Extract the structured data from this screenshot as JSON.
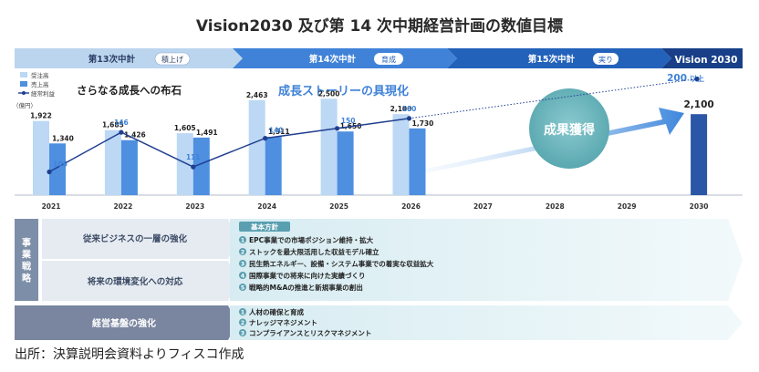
{
  "title": "Vision2030 及び第 14 次中期経営計画の数値目標",
  "source": "出所：決算説明会資料よりフィスコ作成",
  "colors": {
    "orders": "#bcd8f4",
    "sales": "#4e8fe0",
    "profit": "#1f3f8f",
    "sales2030": "#2a56a6",
    "plan13": "#bcd5ee",
    "plan14": "#3f82d8",
    "plan15": "#2362ba",
    "vision": "#183f88",
    "strategy": "#7d8ea8",
    "base": "#7a86a0"
  },
  "phases": [
    {
      "name": "第13次中計",
      "badge": "積上げ"
    },
    {
      "name": "第14次中計",
      "badge": "育成"
    },
    {
      "name": "第15次中計",
      "badge": "実り"
    },
    {
      "name": "Vision 2030",
      "badge": ""
    }
  ],
  "headline_left": "さらなる成長への布石",
  "headline_mid": "成長ストーリーの具現化",
  "arrow_label": "成果獲得",
  "target_profit_label": "200",
  "target_profit_suffix": "以上",
  "unit_label": "（億円）",
  "chart_data": {
    "type": "bar",
    "categories": [
      "2021",
      "2022",
      "2023",
      "2024",
      "2025",
      "2026",
      "2027",
      "2028",
      "2029",
      "2030"
    ],
    "series": [
      {
        "name": "受注高",
        "values": [
          1922,
          1685,
          1605,
          2463,
          2500,
          2100,
          null,
          null,
          null,
          null
        ]
      },
      {
        "name": "売上高",
        "values": [
          1340,
          1426,
          1491,
          1511,
          1650,
          1730,
          null,
          null,
          null,
          2100
        ]
      },
      {
        "name": "経常利益",
        "type": "line",
        "values": [
          106,
          146,
          111,
          140,
          150,
          160,
          null,
          null,
          null,
          200
        ]
      }
    ],
    "legend_position": "top-left",
    "grid": false
  },
  "strategy": {
    "side_label": "事業戦略",
    "rows": [
      "従来ビジネスの一層の強化",
      "将来の環境変化への対応"
    ],
    "policy_title": "基本方針",
    "items": [
      {
        "num": "1",
        "text": "EPC事業での市場ポジション維持・拡大"
      },
      {
        "num": "2",
        "text": "ストックを最大限活用した収益モデル確立"
      },
      {
        "num": "3",
        "text": "民生熱エネルギー、設備・システム事業での着実な収益拡大"
      },
      {
        "num": "4",
        "text": "国際事業での将来に向けた実績づくり"
      },
      {
        "num": "5",
        "text": "戦略的M&Aの推進と新規事業の創出"
      }
    ]
  },
  "base": {
    "label": "経営基盤の強化",
    "items": [
      {
        "num": "1",
        "text": "人材の確保と育成"
      },
      {
        "num": "2",
        "text": "ナレッジマネジメント"
      },
      {
        "num": "3",
        "text": "コンプライアンスとリスクマネジメント"
      }
    ]
  }
}
